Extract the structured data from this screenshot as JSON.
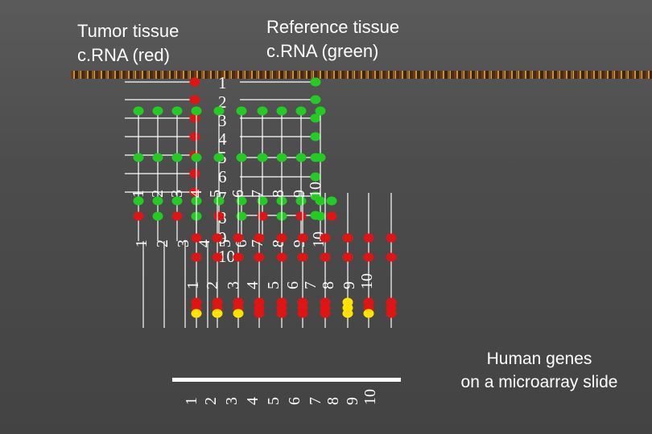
{
  "labels": {
    "tumor": "Tumor tissue\nc.RNA (red)",
    "reference": "Reference tissue\nc.RNA (green)",
    "genes": "Human genes\non a microarray slide"
  },
  "numbers": [
    "1",
    "2",
    "3",
    "4",
    "5",
    "6",
    "7",
    "8",
    "9",
    "10"
  ],
  "colors": {
    "red": "#e01414",
    "green": "#22cc22",
    "yellow": "#ffe400",
    "line": "#ffffff",
    "border_dark": "#3b2410",
    "border_light": "#c7913a"
  }
}
